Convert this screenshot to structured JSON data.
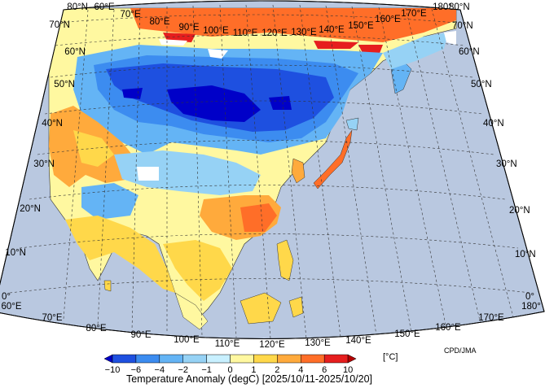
{
  "map": {
    "title": "Temperature Anomaly (degC) [2025/10/11-2025/10/20]",
    "credit": "CPD/JMA",
    "ocean_color": "#b9c8e0",
    "lat_labels_left": [
      "80°N",
      "70°N",
      "60°N",
      "50°N",
      "40°N",
      "30°N",
      "20°N",
      "10°N",
      "0°"
    ],
    "lat_labels_right": [
      "80°N",
      "70°N",
      "60°N",
      "50°N",
      "40°N",
      "30°N",
      "20°N",
      "10°N",
      "0°"
    ],
    "lon_labels_top": [
      "60°E",
      "70°E",
      "80°E",
      "90°E",
      "100°E",
      "110°E",
      "120°E",
      "130°E",
      "140°E",
      "150°E",
      "160°E",
      "170°E",
      "180°"
    ],
    "lon_labels_bottom": [
      "60°E",
      "70°E",
      "80°E",
      "90°E",
      "100°E",
      "110°E",
      "120°E",
      "130°E",
      "140°E",
      "150°E",
      "160°E",
      "170°E",
      "180°"
    ]
  },
  "colorbar": {
    "unit": "[°C]",
    "tick_labels": [
      "−10",
      "−6",
      "−4",
      "−2",
      "−1",
      "0",
      "1",
      "2",
      "4",
      "6",
      "10"
    ],
    "colors": [
      "#0000c8",
      "#1e50e0",
      "#3c8cf0",
      "#64b4f5",
      "#96d2f5",
      "#c8f0ff",
      "#fff8a0",
      "#ffd84a",
      "#ffaa3c",
      "#ff6e28",
      "#e61e1e",
      "#b40000"
    ]
  },
  "anomaly_regions": [
    {
      "name": "siberia-cold-core",
      "level": "-10 to -6"
    },
    {
      "name": "mongolia-north-china-cold",
      "level": "-6 to -4"
    },
    {
      "name": "central-asia-cold",
      "level": "-4 to -1"
    },
    {
      "name": "arctic-coast-warm",
      "level": "4 to 10"
    },
    {
      "name": "south-asia-warm",
      "level": "1 to 4"
    },
    {
      "name": "southeast-china-warm",
      "level": "2 to 6"
    },
    {
      "name": "maritime-continent-warm",
      "level": "0 to 2"
    },
    {
      "name": "japan-warm",
      "level": "2 to 6"
    }
  ]
}
